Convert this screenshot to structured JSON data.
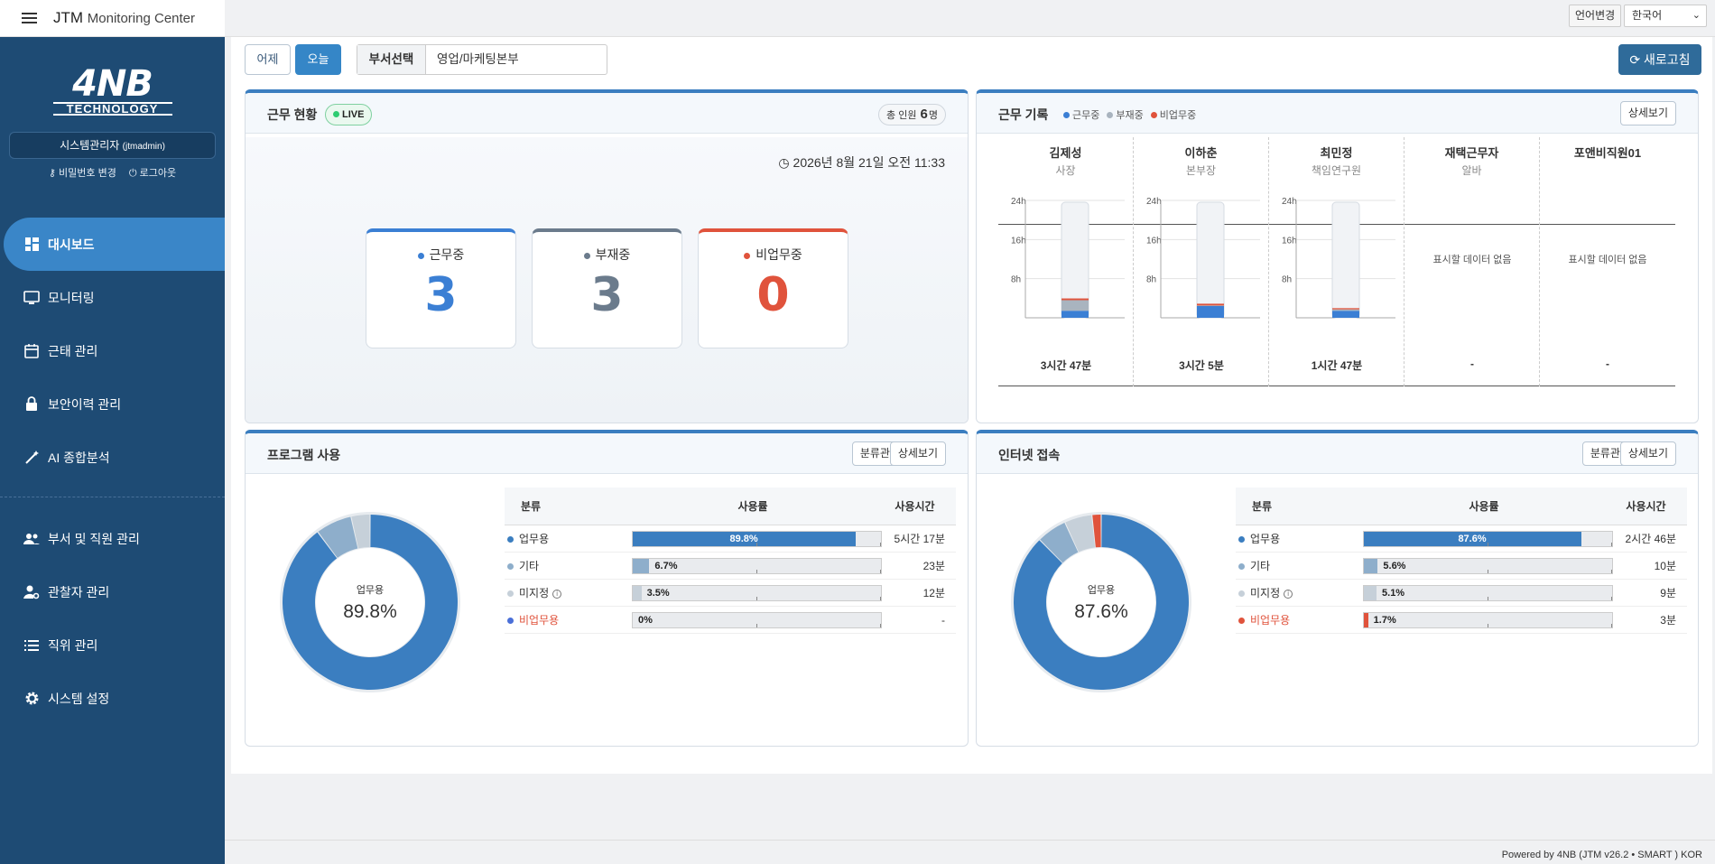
{
  "app": {
    "title": "JTM",
    "subtitle": "Monitoring Center"
  },
  "logo": {
    "main": "4NB",
    "sub": "TECHNOLOGY"
  },
  "user": {
    "name": "시스템관리자",
    "id": "(jtmadmin)",
    "change_pw": "비밀번호 변경",
    "logout": "로그아웃"
  },
  "nav": {
    "primary": [
      {
        "label": "대시보드",
        "icon": "dashboard-icon",
        "active": true
      },
      {
        "label": "모니터링",
        "icon": "monitor-icon"
      },
      {
        "label": "근태 관리",
        "icon": "calendar-icon"
      },
      {
        "label": "보안이력 관리",
        "icon": "lock-icon"
      },
      {
        "label": "AI 종합분석",
        "icon": "magic-wand-icon"
      }
    ],
    "secondary": [
      {
        "label": "부서 및 직원 관리",
        "icon": "people-icon"
      },
      {
        "label": "관찰자 관리",
        "icon": "user-gear-icon"
      },
      {
        "label": "직위 관리",
        "icon": "list-icon"
      },
      {
        "label": "시스템 설정",
        "icon": "gear-icon"
      }
    ]
  },
  "topbar": {
    "lang_label": "언어변경",
    "lang_value": "한국어"
  },
  "toolbar": {
    "yesterday": "어제",
    "today": "오늘",
    "dept_label": "부서선택",
    "dept_value": "영업/마케팅본부",
    "refresh": "새로고침"
  },
  "status": {
    "title": "근무 현황",
    "live": "LIVE",
    "total_label": "총 인원",
    "total_value": "6",
    "total_unit": "명",
    "datetime": "2026년 8월 21일 오전 11:33",
    "cards": [
      {
        "label": "근무중",
        "value": "3",
        "color": "#3b7fd4"
      },
      {
        "label": "부재중",
        "value": "3",
        "color": "#6b7b8c"
      },
      {
        "label": "비업무중",
        "value": "0",
        "color": "#e0533c"
      }
    ]
  },
  "records": {
    "title": "근무 기록",
    "legend": [
      "근무중",
      "부재중",
      "비업무중"
    ],
    "legend_colors": [
      "#3b7fd4",
      "#a9b4bf",
      "#e0533c"
    ],
    "detail": "상세보기",
    "y_ticks": [
      "24h",
      "16h",
      "8h"
    ],
    "no_data": "표시할 데이터 없음",
    "employees": [
      {
        "name": "김제성",
        "title": "사장",
        "time": "3시간 47분",
        "work": 0.06,
        "away": 0.09,
        "nonwork": 0.015
      },
      {
        "name": "이하춘",
        "title": "본부장",
        "time": "3시간 5분",
        "work": 0.1,
        "away": 0.005,
        "nonwork": 0.015
      },
      {
        "name": "최민정",
        "title": "책임연구원",
        "time": "1시간 47분",
        "work": 0.06,
        "away": 0.012,
        "nonwork": 0.01
      },
      {
        "name": "재택근무자",
        "title": "알바",
        "time": "-"
      },
      {
        "name": "포앤비직원01",
        "title": "",
        "time": "-"
      }
    ]
  },
  "program": {
    "title": "프로그램 사용",
    "manage": "분류관리",
    "detail": "상세보기",
    "center_label": "업무용",
    "center_value": "89.8%",
    "headers": [
      "분류",
      "사용률",
      "사용시간"
    ],
    "rows": [
      {
        "name": "업무용",
        "pct": 89.8,
        "pct_label": "89.8%",
        "time": "5시간 17분",
        "color": "#3b7ec0"
      },
      {
        "name": "기타",
        "pct": 6.7,
        "pct_label": "6.7%",
        "time": "23분",
        "color": "#8eaecb"
      },
      {
        "name": "미지정",
        "pct": 3.5,
        "pct_label": "3.5%",
        "time": "12분",
        "color": "#c6d0d9",
        "info": true
      },
      {
        "name": "비업무용",
        "pct": 0,
        "pct_label": "0%",
        "time": "-",
        "color": "#4a6fd8",
        "red": true
      }
    ]
  },
  "internet": {
    "title": "인터넷 접속",
    "manage": "분류관리",
    "detail": "상세보기",
    "center_label": "업무용",
    "center_value": "87.6%",
    "headers": [
      "분류",
      "사용률",
      "사용시간"
    ],
    "rows": [
      {
        "name": "업무용",
        "pct": 87.6,
        "pct_label": "87.6%",
        "time": "2시간 46분",
        "color": "#3b7ec0"
      },
      {
        "name": "기타",
        "pct": 5.6,
        "pct_label": "5.6%",
        "time": "10분",
        "color": "#8eaecb"
      },
      {
        "name": "미지정",
        "pct": 5.1,
        "pct_label": "5.1%",
        "time": "9분",
        "color": "#c6d0d9",
        "info": true
      },
      {
        "name": "비업무용",
        "pct": 1.7,
        "pct_label": "1.7%",
        "time": "3분",
        "color": "#e0533c",
        "red": true
      }
    ]
  },
  "footer": "Powered by 4NB (JTM v26.2 • SMART ) KOR"
}
